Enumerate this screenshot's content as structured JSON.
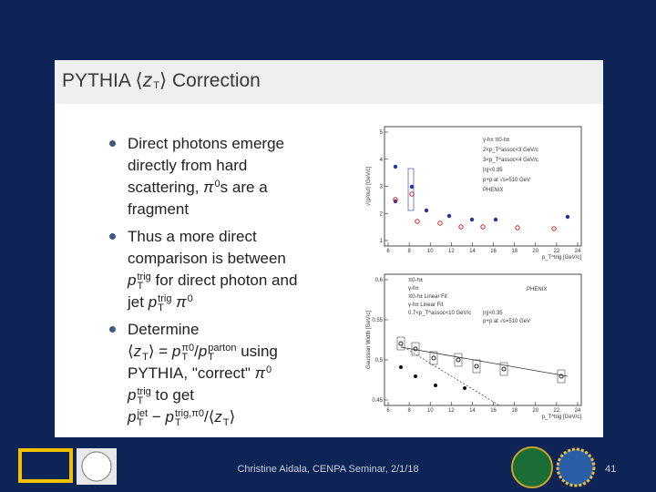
{
  "slide": {
    "title": [
      "PYTHIA ⟨",
      {
        "base": "z",
        "sub": "T"
      },
      "⟩ Correction"
    ],
    "bullets": [
      [
        [
          "Direct photons emerge"
        ],
        [
          "directly from hard"
        ],
        [
          "scattering, ",
          {
            "base": "π",
            "sup": "0"
          },
          "s are a"
        ],
        [
          "fragment"
        ]
      ],
      [
        [
          "Thus a more direct"
        ],
        [
          "comparison is between"
        ],
        [
          {
            "base": "p",
            "sup": "trig",
            "sub": "T"
          },
          " for direct photon and"
        ],
        [
          "jet ",
          {
            "base": "p",
            "sup": "trig",
            "sub": "T"
          },
          " ",
          {
            "base": "π",
            "sup": "0"
          }
        ]
      ],
      [
        [
          "Determine"
        ],
        [
          "⟨",
          {
            "base": "z",
            "sub": "T"
          },
          "⟩ = ",
          {
            "base": "p",
            "sup": "π0",
            "sub": "T"
          },
          "/",
          {
            "base": "p",
            "sup": "parton",
            "sub": "T"
          },
          " using"
        ],
        [
          "PYTHIA, \"correct\" ",
          {
            "base": "π",
            "sup": "0"
          }
        ],
        [
          {
            "base": "p",
            "sup": "trig",
            "sub": "T"
          },
          " to get"
        ],
        [
          {
            "base": "p",
            "sup": "jet",
            "sub": "T"
          },
          " − ",
          {
            "base": "p",
            "sup": "trig,π0",
            "sub": "T"
          },
          "/⟨",
          {
            "base": "z",
            "sub": "T"
          },
          "⟩"
        ]
      ]
    ],
    "plots": [
      {
        "ylabel": "√⟨p²out⟩ [GeV/c]",
        "xlabel": "p_T^trig [GeV/c]",
        "xticks": [
          "6",
          "8",
          "10",
          "12",
          "14",
          "16",
          "18",
          "20",
          "22",
          "24"
        ],
        "yticks": [
          "5",
          "4",
          "3",
          "2",
          "1"
        ],
        "legend": [
          "γ-h±   π0-h±",
          "2<p_T^assoc<3 GeV/c",
          "3<p_T^assoc<4 GeV/c",
          "|η|<0.35",
          "p+p at √s=510 GeV",
          "PHENIX"
        ]
      },
      {
        "ylabel": "Gaussian Width [GeV/c]",
        "xlabel": "p_T^trig [GeV/c]",
        "xticks": [
          "6",
          "8",
          "10",
          "12",
          "14",
          "16",
          "18",
          "20",
          "22",
          "24"
        ],
        "yticks": [
          "0.6",
          "0.55",
          "0.5",
          "0.45"
        ],
        "legend": [
          "π0-h±",
          "γ-h±",
          "π0-h± Linear Fit",
          "γ-h± Linear Fit",
          "0.7<p_T^assoc<10 GeV/c",
          "PHENIX",
          "|η|<0.35",
          "p+p at √s=510 GeV"
        ]
      }
    ],
    "footer": "Christine Aidala, CENPA Seminar, 2/1/18",
    "page_number": "41"
  }
}
